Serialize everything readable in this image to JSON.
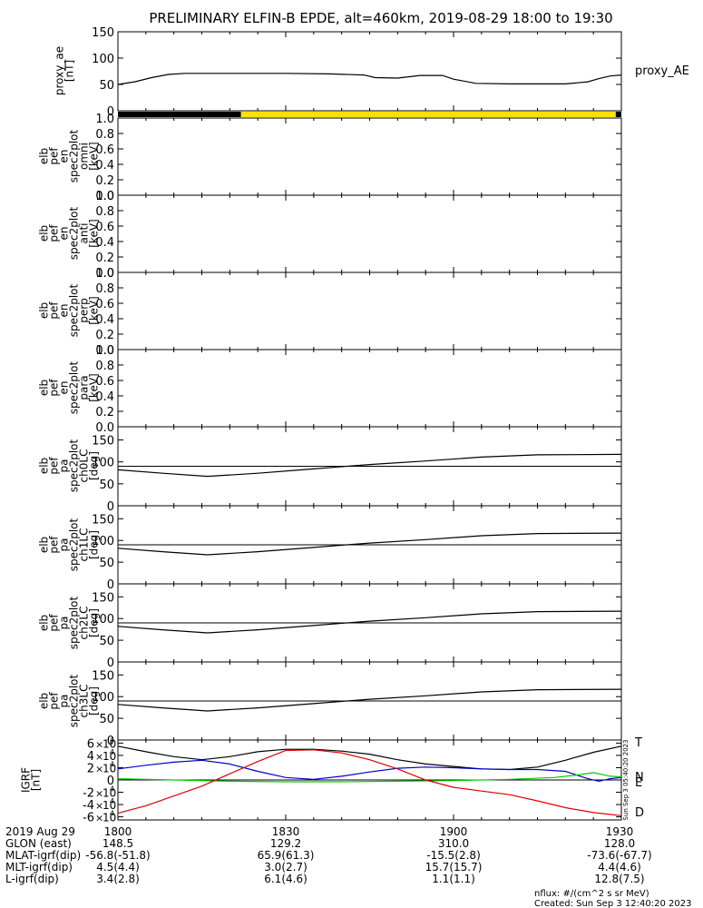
{
  "title": "PRELIMINARY ELFIN-B EPDE, alt=460km, 2019-08-29 18:00 to 19:30",
  "chart_data": {
    "type": "line",
    "time_axis": {
      "range": [
        "18:00",
        "19:30"
      ],
      "ticks": [
        "1800",
        "1830",
        "1900",
        "1930"
      ]
    },
    "panels": [
      {
        "id": "proxy_ae",
        "ylabel_lines": [
          "proxy_ae",
          "[nT]"
        ],
        "ylim": [
          0,
          150
        ],
        "yticks": [
          "0",
          "50",
          "100",
          "150"
        ],
        "legend": "proxy_AE",
        "series": [
          {
            "name": "proxy_AE",
            "color": "#000000",
            "x_min": [
              0,
              3,
              6,
              9,
              12,
              15,
              18,
              22,
              30,
              38,
              44,
              46,
              50,
              54,
              58,
              60,
              64,
              70,
              76,
              80,
              84,
              86,
              88,
              90
            ],
            "y": [
              50,
              55,
              63,
              69,
              71,
              71,
              71,
              71,
              71,
              70,
              68,
              63,
              62,
              67,
              67,
              60,
              52,
              51,
              51,
              51,
              55,
              61,
              66,
              68
            ]
          }
        ]
      },
      {
        "id": "status_bar",
        "segments": [
          {
            "from_min": 0,
            "to_min": 22,
            "color": "#000000"
          },
          {
            "from_min": 22,
            "to_min": 89,
            "color": "#ffe000"
          },
          {
            "from_min": 89,
            "to_min": 90,
            "color": "#000000"
          }
        ]
      },
      {
        "id": "omni",
        "ylabel_lines": [
          "elb",
          "pef",
          "en",
          "spec2plot",
          "omni",
          "[keV]"
        ],
        "ylim": [
          0,
          1
        ],
        "yticks": [
          "0.0",
          "0.2",
          "0.4",
          "0.6",
          "0.8",
          "1.0"
        ],
        "series": []
      },
      {
        "id": "anti",
        "ylabel_lines": [
          "elb",
          "pef",
          "en",
          "spec2plot",
          "anti",
          "[keV]"
        ],
        "ylim": [
          0,
          1
        ],
        "yticks": [
          "0.0",
          "0.2",
          "0.4",
          "0.6",
          "0.8",
          "1.0"
        ],
        "series": []
      },
      {
        "id": "perp",
        "ylabel_lines": [
          "elb",
          "pef",
          "en",
          "spec2plot",
          "perp",
          "[keV]"
        ],
        "ylim": [
          0,
          1
        ],
        "yticks": [
          "0.0",
          "0.2",
          "0.4",
          "0.6",
          "0.8",
          "1.0"
        ],
        "series": []
      },
      {
        "id": "para",
        "ylabel_lines": [
          "elb",
          "pef",
          "en",
          "spec2plot",
          "para",
          "[keV]"
        ],
        "ylim": [
          0,
          1
        ],
        "yticks": [
          "0.0",
          "0.2",
          "0.4",
          "0.6",
          "0.8",
          "1.0"
        ],
        "series": []
      },
      {
        "id": "ch0LC",
        "ylabel_lines": [
          "elb",
          "pef",
          "pa",
          "spec2plot",
          "ch0LC",
          "[deg]"
        ],
        "ylim": [
          0,
          180
        ],
        "yticks": [
          "0",
          "50",
          "100",
          "150"
        ],
        "hline": 90,
        "series": [
          {
            "name": "LC",
            "color": "#000000",
            "x_min": [
              0,
              8,
              16,
              25,
              35,
              45,
              55,
              65,
              75,
              90
            ],
            "y": [
              82,
              74,
              67,
              74,
              84,
              94,
              102,
              111,
              116,
              117
            ]
          }
        ]
      },
      {
        "id": "ch1LC",
        "ylabel_lines": [
          "elb",
          "pef",
          "pa",
          "spec2plot",
          "ch1LC",
          "[deg]"
        ],
        "ylim": [
          0,
          180
        ],
        "yticks": [
          "0",
          "50",
          "100",
          "150"
        ],
        "hline": 90,
        "series": [
          {
            "name": "LC",
            "color": "#000000",
            "x_min": [
              0,
              8,
              16,
              25,
              35,
              45,
              55,
              65,
              75,
              90
            ],
            "y": [
              82,
              74,
              67,
              74,
              84,
              94,
              102,
              111,
              116,
              117
            ]
          }
        ]
      },
      {
        "id": "ch2LC",
        "ylabel_lines": [
          "elb",
          "pef",
          "pa",
          "spec2plot",
          "ch2LC",
          "[deg]"
        ],
        "ylim": [
          0,
          180
        ],
        "yticks": [
          "0",
          "50",
          "100",
          "150"
        ],
        "hline": 90,
        "series": [
          {
            "name": "LC",
            "color": "#000000",
            "x_min": [
              0,
              8,
              16,
              25,
              35,
              45,
              55,
              65,
              75,
              90
            ],
            "y": [
              82,
              74,
              67,
              74,
              84,
              94,
              102,
              111,
              116,
              117
            ]
          }
        ]
      },
      {
        "id": "ch3LC",
        "ylabel_lines": [
          "elb",
          "pef",
          "pa",
          "spec2plot",
          "ch3LC",
          "[deg]"
        ],
        "ylim": [
          0,
          180
        ],
        "yticks": [
          "0",
          "50",
          "100",
          "150"
        ],
        "hline": 90,
        "series": [
          {
            "name": "LC",
            "color": "#000000",
            "x_min": [
              0,
              8,
              16,
              25,
              35,
              45,
              55,
              65,
              75,
              90
            ],
            "y": [
              82,
              74,
              67,
              74,
              84,
              94,
              102,
              111,
              116,
              117
            ]
          }
        ]
      },
      {
        "id": "igrf",
        "ylabel_lines": [
          "IGRF",
          "[nT]"
        ],
        "ylim": [
          -65000,
          65000
        ],
        "yticks_mantissa": [
          "-6",
          "-4",
          "-2",
          "0",
          "2",
          "4",
          "6"
        ],
        "ytick_values": [
          -60000,
          -40000,
          -20000,
          0,
          20000,
          40000,
          60000
        ],
        "ytick_suffix": "10",
        "ytick_exponent": "4",
        "hline": 0,
        "series": [
          {
            "name": "T",
            "color": "#000000",
            "x_min": [
              0,
              5,
              10,
              15,
              20,
              25,
              30,
              35,
              40,
              45,
              50,
              55,
              60,
              65,
              70,
              75,
              80,
              85,
              90
            ],
            "y": [
              55000,
              46000,
              38000,
              33000,
              38000,
              46000,
              50000,
              50000,
              47000,
              42000,
              33000,
              26000,
              22000,
              18000,
              17000,
              21000,
              32000,
              45000,
              55000
            ]
          },
          {
            "name": "N",
            "color": "#0000cc",
            "x_min": [
              0,
              5,
              10,
              15,
              20,
              25,
              30,
              35,
              40,
              45,
              50,
              55,
              60,
              65,
              70,
              75,
              80,
              84,
              86,
              88,
              90
            ],
            "y": [
              18000,
              24000,
              29000,
              32000,
              26000,
              14000,
              4000,
              1000,
              6000,
              13000,
              19000,
              21000,
              20000,
              18000,
              17000,
              17000,
              14000,
              2000,
              -2000,
              2000,
              4000
            ]
          },
          {
            "name": "E",
            "color": "#00cc00",
            "x_min": [
              0,
              10,
              20,
              30,
              40,
              50,
              60,
              70,
              78,
              82,
              85,
              87,
              88,
              90
            ],
            "y": [
              2000,
              0,
              -2000,
              -3000,
              -3000,
              -2000,
              -1000,
              1000,
              4000,
              8000,
              12000,
              8000,
              6000,
              5000
            ]
          },
          {
            "name": "D",
            "color": "#dd0000",
            "x_min": [
              0,
              5,
              10,
              15,
              20,
              25,
              30,
              35,
              40,
              45,
              50,
              55,
              60,
              65,
              70,
              75,
              80,
              85,
              90
            ],
            "y": [
              -54000,
              -42000,
              -26000,
              -10000,
              10000,
              30000,
              48000,
              49000,
              44000,
              33000,
              18000,
              0,
              -12000,
              -18000,
              -24000,
              -34000,
              -45000,
              -53000,
              -58000
            ]
          }
        ],
        "side_labels": [
          "T",
          "N",
          "E",
          "D"
        ],
        "side_note": "Sun Sep  3 05:40:20 2023"
      }
    ]
  },
  "position_table": {
    "rows": [
      {
        "label": "2019 Aug 29",
        "values": [
          "1800",
          "1830",
          "1900",
          "1930"
        ]
      },
      {
        "label": "GLON (east)",
        "values": [
          "148.5",
          "129.2",
          "310.0",
          "128.0"
        ]
      },
      {
        "label": "MLAT-igrf(dip)",
        "values": [
          "-56.8(-51.8)",
          "65.9(61.3)",
          "-15.5(2.8)",
          "-73.6(-67.7)"
        ]
      },
      {
        "label": "MLT-igrf(dip)",
        "values": [
          "4.5(4.4)",
          "3.0(2.7)",
          "15.7(15.7)",
          "4.4(4.6)"
        ]
      },
      {
        "label": "L-igrf(dip)",
        "values": [
          "3.4(2.8)",
          "6.1(4.6)",
          "1.1(1.1)",
          "12.8(7.5)"
        ]
      }
    ]
  },
  "footer": {
    "nflux": "nflux: #/(cm^2 s sr MeV)",
    "created": "Created: Sun Sep  3 12:40:20 2023"
  }
}
